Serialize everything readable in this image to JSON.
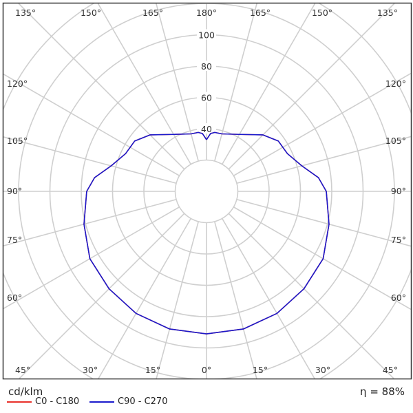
{
  "chart_data": {
    "type": "polar",
    "unit": "cd/klm",
    "radial_ticks": [
      40,
      60,
      80,
      100
    ],
    "radial_range": [
      0,
      140
    ],
    "radial_step": 20,
    "angle_labels": {
      "top": [
        "135°",
        "150°",
        "165°",
        "180°",
        "165°",
        "150°",
        "135°"
      ],
      "left": [
        "120°",
        "105°",
        "90°",
        "75°",
        "60°"
      ],
      "right": [
        "120°",
        "105°",
        "90°",
        "75°",
        "60°"
      ],
      "bottom": [
        "45°",
        "30°",
        "15°",
        "0°",
        "15°",
        "30°",
        "45°"
      ]
    },
    "grid": true,
    "gamma_deg": [
      0,
      15,
      30,
      45,
      60,
      75,
      90,
      97,
      105,
      115,
      125,
      135,
      150,
      165,
      172,
      176,
      180
    ],
    "series": [
      {
        "name": "C0 - C180",
        "color": "#e8302a",
        "values": [
          91,
          91,
          90,
          88,
          86,
          81,
          76.5,
          72,
          63,
          57,
          56,
          51,
          42,
          38,
          38,
          37,
          33
        ]
      },
      {
        "name": "C90 - C270",
        "color": "#1a1acc",
        "values": [
          91,
          91,
          90,
          88,
          86,
          81,
          76.5,
          72,
          63,
          57,
          56,
          51,
          42,
          38,
          38,
          37,
          33
        ]
      }
    ],
    "efficiency": "η = 88%"
  }
}
